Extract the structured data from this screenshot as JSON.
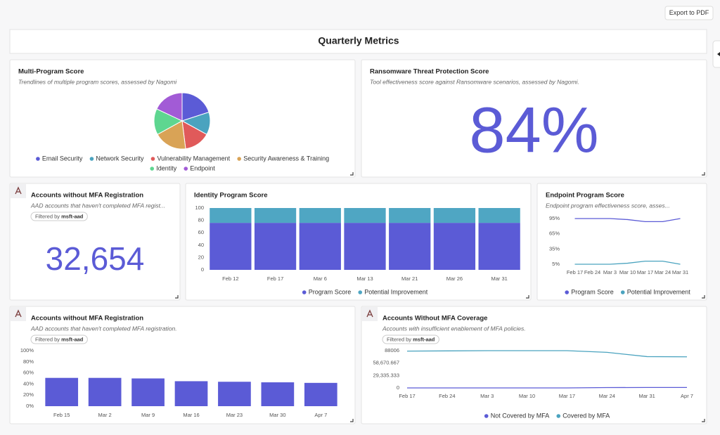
{
  "export_button": "Export to PDF",
  "page_title": "Quarterly Metrics",
  "kpis": [
    {
      "title": "Ransomware Threat Protection Score",
      "subtitle": "Tool effectiveness score against Ransomware scenarios, assessed by Nagomi.",
      "value": "84%"
    },
    {
      "title": "Accounts without MFA Registration",
      "subtitle": "AAD accounts that haven't completed MFA regist...",
      "filter_label": "Filtered by",
      "filter_value": "msft-aad",
      "value": "32,654"
    }
  ],
  "chart_data": [
    {
      "type": "pie",
      "title": "Multi-Program Score",
      "subtitle": "Trendlines of multiple program scores, assessed by Nagomi",
      "categories": [
        "Email Security",
        "Network Security",
        "Vulnerability Management",
        "Security Awareness & Training",
        "Identity",
        "Endpoint"
      ],
      "values": [
        20,
        13,
        15,
        19,
        15,
        18
      ],
      "colors": [
        "#5b5bd6",
        "#4aa3bf",
        "#e05a5a",
        "#d9a356",
        "#5ed690",
        "#a25bd6"
      ]
    },
    {
      "type": "bar",
      "stacked": true,
      "title": "Identity Program Score",
      "categories": [
        "Feb 12",
        "Feb 17",
        "Mar 6",
        "Mar 13",
        "Mar 21",
        "Mar 26",
        "Mar 31"
      ],
      "series": [
        {
          "name": "Program Score",
          "color": "#5b5bd6",
          "values": [
            76,
            76,
            76,
            76,
            76,
            76,
            76
          ]
        },
        {
          "name": "Potential Improvement",
          "color": "#4fa6c3",
          "values": [
            24,
            24,
            24,
            24,
            24,
            24,
            24
          ]
        }
      ],
      "ylim": [
        0,
        100
      ],
      "yticks": [
        0,
        20,
        40,
        60,
        80,
        100
      ]
    },
    {
      "type": "line",
      "title": "Endpoint Program Score",
      "subtitle": "Endpoint program effectiveness score, asses...",
      "categories": [
        "Feb 17",
        "Feb 24",
        "Mar 3",
        "Mar 10",
        "Mar 17",
        "Mar 24",
        "Mar 31"
      ],
      "series": [
        {
          "name": "Program Score",
          "color": "#5b5bd6",
          "values": [
            95,
            95,
            95,
            93,
            89,
            89,
            95
          ]
        },
        {
          "name": "Potential Improvement",
          "color": "#4aa3bf",
          "values": [
            5,
            5,
            5,
            7,
            11,
            11,
            5
          ]
        }
      ],
      "ylim": [
        0,
        100
      ],
      "yticks": [
        {
          "value": 5,
          "label": "5%"
        },
        {
          "value": 35,
          "label": "35%"
        },
        {
          "value": 65,
          "label": "65%"
        },
        {
          "value": 95,
          "label": "95%"
        }
      ]
    },
    {
      "type": "bar",
      "title": "Accounts without MFA Registration",
      "subtitle": "AAD accounts that haven't completed MFA registration.",
      "filter_label": "Filtered by",
      "filter_value": "msft-aad",
      "categories": [
        "Feb 15",
        "Mar 2",
        "Mar 9",
        "Mar 16",
        "Mar 23",
        "Mar 30",
        "Apr 7"
      ],
      "series": [
        {
          "name": "Accounts",
          "color": "#5b5bd6",
          "values": [
            51,
            51,
            50,
            45,
            44,
            43,
            42
          ]
        }
      ],
      "ylim": [
        0,
        100
      ],
      "yticks": [
        {
          "value": 0,
          "label": "0%"
        },
        {
          "value": 20,
          "label": "20%"
        },
        {
          "value": 40,
          "label": "40%"
        },
        {
          "value": 60,
          "label": "60%"
        },
        {
          "value": 80,
          "label": "80%"
        },
        {
          "value": 100,
          "label": "100%"
        }
      ]
    },
    {
      "type": "line",
      "title": "Accounts Without MFA Coverage",
      "subtitle": "Accounts with insufficient enablement of MFA policies.",
      "filter_label": "Filtered by",
      "filter_value": "msft-aad",
      "categories": [
        "Feb 17",
        "Feb 24",
        "Mar 3",
        "Mar 10",
        "Mar 17",
        "Mar 24",
        "Mar 31",
        "Apr 7"
      ],
      "series": [
        {
          "name": "Not Covered by MFA",
          "color": "#5b5bd6",
          "values": [
            0,
            0,
            0,
            0,
            0,
            800,
            1000,
            1000
          ]
        },
        {
          "name": "Covered by MFA",
          "color": "#4aa3bf",
          "values": [
            87000,
            87500,
            88006,
            88006,
            88006,
            84000,
            74000,
            73500
          ]
        }
      ],
      "ylim": [
        0,
        88006
      ],
      "yticks": [
        0,
        {
          "value": 29335.333,
          "label": "29,335.333"
        },
        {
          "value": 58670.667,
          "label": "58,670.667"
        },
        88006
      ]
    }
  ]
}
